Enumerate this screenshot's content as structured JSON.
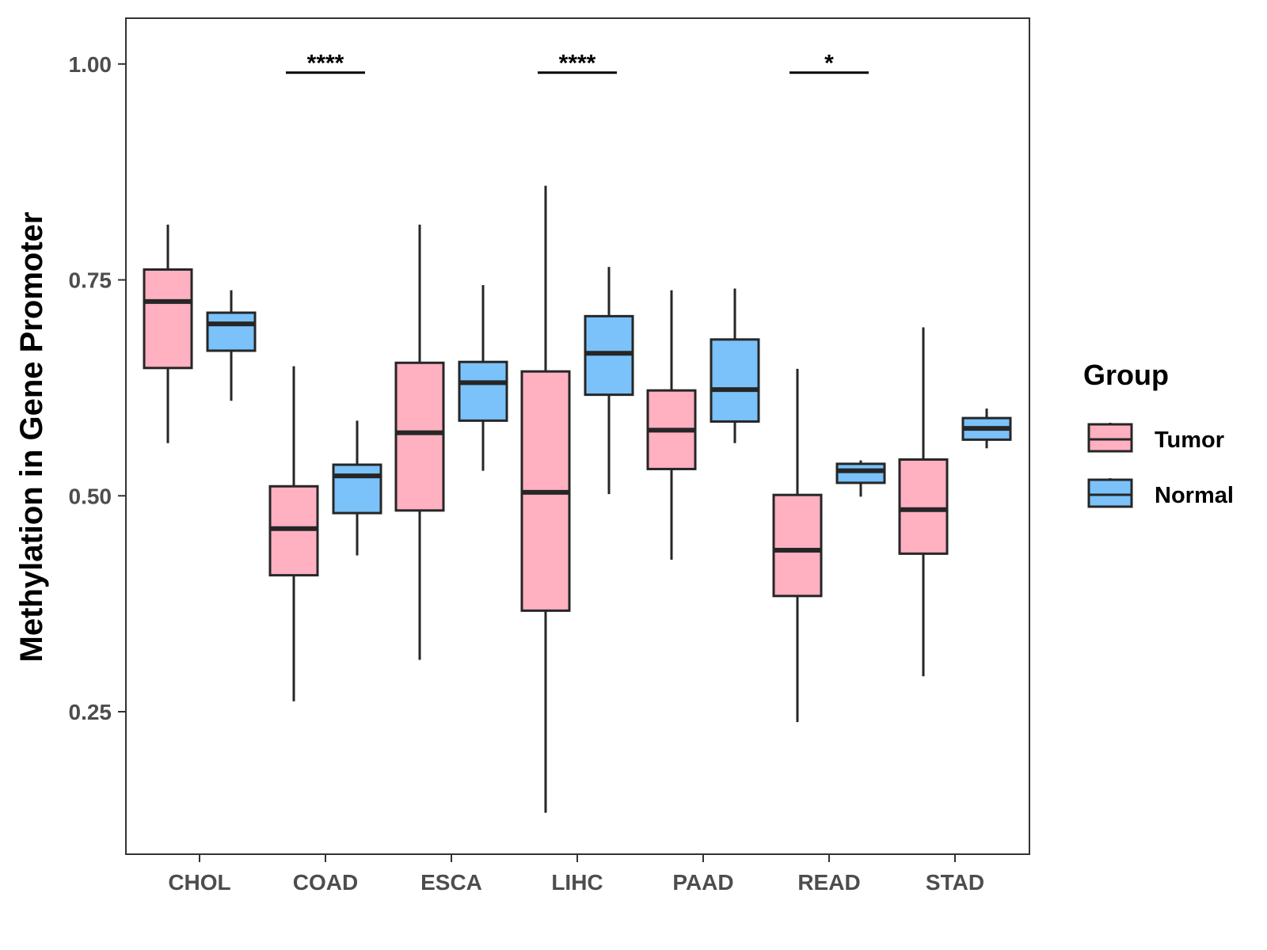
{
  "chart_data": {
    "type": "boxplot",
    "title": "",
    "xlabel": "",
    "ylabel": "Methylation in Gene Promoter",
    "ylim": [
      0.085,
      1.053
    ],
    "yticks": [
      0.25,
      0.5,
      0.75,
      1.0
    ],
    "ytick_labels": [
      "0.25",
      "0.50",
      "0.75",
      "1.00"
    ],
    "categories": [
      "CHOL",
      "COAD",
      "ESCA",
      "LIHC",
      "PAAD",
      "READ",
      "STAD"
    ],
    "legend": {
      "title": "Group",
      "placement": "right",
      "entries": [
        "Tumor",
        "Normal"
      ]
    },
    "colors": {
      "Tumor": "#ffb0c1",
      "Normal": "#7ac2f9",
      "stroke": "#262626"
    },
    "series": [
      {
        "name": "Tumor",
        "boxes": [
          {
            "category": "CHOL",
            "whisker_low": 0.561,
            "q1": 0.648,
            "median": 0.725,
            "q3": 0.762,
            "whisker_high": 0.814
          },
          {
            "category": "COAD",
            "whisker_low": 0.262,
            "q1": 0.408,
            "median": 0.462,
            "q3": 0.511,
            "whisker_high": 0.65
          },
          {
            "category": "ESCA",
            "whisker_low": 0.31,
            "q1": 0.483,
            "median": 0.573,
            "q3": 0.654,
            "whisker_high": 0.814
          },
          {
            "category": "LIHC",
            "whisker_low": 0.133,
            "q1": 0.367,
            "median": 0.504,
            "q3": 0.644,
            "whisker_high": 0.859
          },
          {
            "category": "PAAD",
            "whisker_low": 0.426,
            "q1": 0.531,
            "median": 0.576,
            "q3": 0.622,
            "whisker_high": 0.738
          },
          {
            "category": "READ",
            "whisker_low": 0.238,
            "q1": 0.384,
            "median": 0.437,
            "q3": 0.501,
            "whisker_high": 0.647
          },
          {
            "category": "STAD",
            "whisker_low": 0.291,
            "q1": 0.433,
            "median": 0.484,
            "q3": 0.542,
            "whisker_high": 0.695
          }
        ]
      },
      {
        "name": "Normal",
        "boxes": [
          {
            "category": "CHOL",
            "whisker_low": 0.61,
            "q1": 0.668,
            "median": 0.699,
            "q3": 0.712,
            "whisker_high": 0.738
          },
          {
            "category": "COAD",
            "whisker_low": 0.431,
            "q1": 0.48,
            "median": 0.523,
            "q3": 0.536,
            "whisker_high": 0.587
          },
          {
            "category": "ESCA",
            "whisker_low": 0.529,
            "q1": 0.587,
            "median": 0.631,
            "q3": 0.655,
            "whisker_high": 0.744
          },
          {
            "category": "LIHC",
            "whisker_low": 0.502,
            "q1": 0.617,
            "median": 0.665,
            "q3": 0.708,
            "whisker_high": 0.765
          },
          {
            "category": "PAAD",
            "whisker_low": 0.561,
            "q1": 0.586,
            "median": 0.623,
            "q3": 0.681,
            "whisker_high": 0.74
          },
          {
            "category": "READ",
            "whisker_low": 0.499,
            "q1": 0.515,
            "median": 0.529,
            "q3": 0.537,
            "whisker_high": 0.541
          },
          {
            "category": "STAD",
            "whisker_low": 0.555,
            "q1": 0.565,
            "median": 0.578,
            "q3": 0.59,
            "whisker_high": 0.601
          }
        ]
      }
    ],
    "annotations": [
      {
        "category": "COAD",
        "label": "****",
        "y": 0.99
      },
      {
        "category": "LIHC",
        "label": "****",
        "y": 0.99
      },
      {
        "category": "READ",
        "label": "*",
        "y": 0.99
      }
    ]
  }
}
